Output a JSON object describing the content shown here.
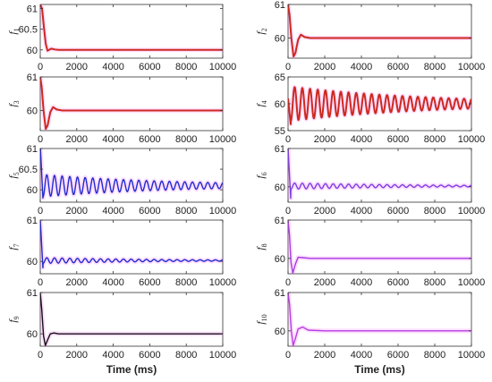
{
  "chart_data": [
    {
      "id": "f1",
      "type": "line",
      "ylabel": "f",
      "ylabel_sub": "1",
      "xlim": [
        0,
        10000
      ],
      "ylim": [
        59.8,
        61.1
      ],
      "yticks": [
        60,
        60.5,
        61
      ],
      "ytick_labels": [
        "60",
        "60.5",
        "61"
      ],
      "xticks": [
        0,
        2000,
        4000,
        6000,
        8000,
        10000
      ],
      "xtick_labels": [
        "0",
        "2000",
        "4000",
        "6000",
        "8000",
        "10000"
      ],
      "xlabel": "",
      "color": "#cc2a1f",
      "highlight": "#ff66ff",
      "series": [
        {
          "x": [
            0,
            100,
            200,
            300,
            400,
            600,
            800,
            1000,
            2000,
            4000,
            6000,
            8000,
            10000
          ],
          "y": [
            61.1,
            61.0,
            60.55,
            60.15,
            59.98,
            60.03,
            60.01,
            60.0,
            60.0,
            60.0,
            60.0,
            60.0,
            60.0
          ]
        }
      ]
    },
    {
      "id": "f2",
      "type": "line",
      "ylabel": "f",
      "ylabel_sub": "2",
      "xlim": [
        0,
        10000
      ],
      "ylim": [
        59.4,
        61.0
      ],
      "yticks": [
        60,
        61
      ],
      "ytick_labels": [
        "60",
        "61"
      ],
      "xticks": [
        0,
        2000,
        4000,
        6000,
        8000,
        10000
      ],
      "xtick_labels": [
        "0",
        "2000",
        "4000",
        "6000",
        "8000",
        "10000"
      ],
      "xlabel": "",
      "color": "#cc2a1f",
      "highlight": "#ff66ff",
      "series": [
        {
          "x": [
            0,
            80,
            180,
            300,
            400,
            550,
            700,
            900,
            1200,
            2000,
            4000,
            6000,
            8000,
            10000
          ],
          "y": [
            61.0,
            60.7,
            60.0,
            59.45,
            59.55,
            59.95,
            60.1,
            60.03,
            60.0,
            60.0,
            60.0,
            60.0,
            60.0,
            60.0
          ]
        }
      ]
    },
    {
      "id": "f3",
      "type": "line",
      "ylabel": "f",
      "ylabel_sub": "3",
      "xlim": [
        0,
        10000
      ],
      "ylim": [
        59.4,
        61.0
      ],
      "yticks": [
        60,
        61
      ],
      "ytick_labels": [
        "60",
        "61"
      ],
      "xticks": [
        0,
        2000,
        4000,
        6000,
        8000,
        10000
      ],
      "xtick_labels": [
        "0",
        "2000",
        "4000",
        "6000",
        "8000",
        "10000"
      ],
      "xlabel": "",
      "color": "#cc2a1f",
      "highlight": "#ff66ff",
      "series": [
        {
          "x": [
            0,
            80,
            180,
            300,
            400,
            550,
            700,
            900,
            1200,
            2000,
            4000,
            6000,
            8000,
            10000
          ],
          "y": [
            61.0,
            60.7,
            60.0,
            59.45,
            59.55,
            59.95,
            60.1,
            60.03,
            60.0,
            60.0,
            60.0,
            60.0,
            60.0,
            60.0
          ]
        }
      ]
    },
    {
      "id": "f4",
      "type": "line",
      "ylabel": "f",
      "ylabel_sub": "4",
      "xlim": [
        0,
        10000
      ],
      "ylim": [
        55,
        65
      ],
      "yticks": [
        55,
        60,
        65
      ],
      "ytick_labels": [
        "55",
        "60",
        "65"
      ],
      "xticks": [
        0,
        2000,
        4000,
        6000,
        8000,
        10000
      ],
      "xtick_labels": [
        "0",
        "2000",
        "4000",
        "6000",
        "8000",
        "10000"
      ],
      "xlabel": "",
      "color": "#cc2a1f",
      "highlight": "#ff66ff",
      "oscillation": {
        "baseline": 60,
        "start_amplitude": 3.2,
        "end_amplitude": 0.9,
        "period_ms": 420,
        "first_dip": 56.0
      }
    },
    {
      "id": "f5",
      "type": "line",
      "ylabel": "f",
      "ylabel_sub": "5",
      "xlim": [
        0,
        10000
      ],
      "ylim": [
        59.7,
        61.0
      ],
      "yticks": [
        60,
        60.5,
        61
      ],
      "ytick_labels": [
        "60",
        "60.5",
        "61"
      ],
      "xticks": [
        0,
        2000,
        4000,
        6000,
        8000,
        10000
      ],
      "xtick_labels": [
        "0",
        "2000",
        "4000",
        "6000",
        "8000",
        "10000"
      ],
      "xlabel": "",
      "color": "#1f2bcc",
      "highlight": "#ff66ff",
      "oscillation": {
        "baseline": 60.1,
        "start_amplitude": 0.27,
        "end_amplitude": 0.07,
        "period_ms": 420,
        "first_dip": 59.75
      }
    },
    {
      "id": "f6",
      "type": "line",
      "ylabel": "f",
      "ylabel_sub": "6",
      "xlim": [
        0,
        10000
      ],
      "ylim": [
        59.6,
        61.0
      ],
      "yticks": [
        60,
        61
      ],
      "ytick_labels": [
        "60",
        "61"
      ],
      "xticks": [
        0,
        2000,
        4000,
        6000,
        8000,
        10000
      ],
      "xtick_labels": [
        "0",
        "2000",
        "4000",
        "6000",
        "8000",
        "10000"
      ],
      "xlabel": "",
      "color": "#7a3fe0",
      "highlight": "#ff66ff",
      "oscillation": {
        "baseline": 60.02,
        "start_amplitude": 0.08,
        "end_amplitude": 0.02,
        "period_ms": 420,
        "first_dip": 59.65
      }
    },
    {
      "id": "f7",
      "type": "line",
      "ylabel": "f",
      "ylabel_sub": "7",
      "xlim": [
        0,
        10000
      ],
      "ylim": [
        59.7,
        61.0
      ],
      "yticks": [
        60,
        61
      ],
      "ytick_labels": [
        "60",
        "61"
      ],
      "xticks": [
        0,
        2000,
        4000,
        6000,
        8000,
        10000
      ],
      "xtick_labels": [
        "0",
        "2000",
        "4000",
        "6000",
        "8000",
        "10000"
      ],
      "xlabel": "",
      "color": "#1f2bcc",
      "highlight": "#ff66ff",
      "oscillation": {
        "baseline": 60.02,
        "start_amplitude": 0.07,
        "end_amplitude": 0.015,
        "period_ms": 420,
        "first_dip": 59.8
      }
    },
    {
      "id": "f8",
      "type": "line",
      "ylabel": "f",
      "ylabel_sub": "8",
      "xlim": [
        0,
        10000
      ],
      "ylim": [
        59.6,
        61.0
      ],
      "yticks": [
        60,
        61
      ],
      "ytick_labels": [
        "60",
        "61"
      ],
      "xticks": [
        0,
        2000,
        4000,
        6000,
        8000,
        10000
      ],
      "xtick_labels": [
        "0",
        "2000",
        "4000",
        "6000",
        "8000",
        "10000"
      ],
      "xlabel": "",
      "color": "#a33fe0",
      "highlight": "#ff66ff",
      "series": [
        {
          "x": [
            0,
            80,
            160,
            260,
            400,
            550,
            800,
            1200,
            2000,
            4000,
            6000,
            8000,
            10000
          ],
          "y": [
            61.0,
            60.6,
            59.9,
            59.62,
            59.85,
            60.03,
            60.02,
            60.0,
            60.0,
            60.0,
            60.0,
            60.0,
            60.0
          ]
        }
      ]
    },
    {
      "id": "f9",
      "type": "line",
      "ylabel": "f",
      "ylabel_sub": "9",
      "xlim": [
        0,
        10000
      ],
      "ylim": [
        59.7,
        61.0
      ],
      "yticks": [
        60,
        61
      ],
      "ytick_labels": [
        "60",
        "61"
      ],
      "xticks": [
        0,
        2000,
        4000,
        6000,
        8000,
        10000
      ],
      "xtick_labels": [
        "0",
        "2000",
        "4000",
        "6000",
        "8000",
        "10000"
      ],
      "xlabel": "Time (ms)",
      "color": "#111111",
      "highlight": "#ff66ff",
      "series": [
        {
          "x": [
            0,
            80,
            180,
            280,
            400,
            550,
            750,
            1000,
            2000,
            4000,
            6000,
            8000,
            10000
          ],
          "y": [
            61.0,
            60.6,
            59.95,
            59.72,
            59.85,
            60.0,
            60.02,
            60.0,
            60.0,
            60.0,
            60.0,
            60.0,
            60.0
          ]
        }
      ]
    },
    {
      "id": "f10",
      "type": "line",
      "ylabel": "f",
      "ylabel_sub": "10",
      "xlim": [
        0,
        10000
      ],
      "ylim": [
        59.6,
        61.0
      ],
      "yticks": [
        60,
        61
      ],
      "ytick_labels": [
        "60",
        "61"
      ],
      "xticks": [
        0,
        2000,
        4000,
        6000,
        8000,
        10000
      ],
      "xtick_labels": [
        "0",
        "2000",
        "4000",
        "6000",
        "8000",
        "10000"
      ],
      "xlabel": "Time (ms)",
      "color": "#b53fe0",
      "highlight": "#ff66ff",
      "series": [
        {
          "x": [
            0,
            80,
            180,
            280,
            400,
            550,
            800,
            1100,
            2000,
            4000,
            6000,
            8000,
            10000
          ],
          "y": [
            61.0,
            60.7,
            60.0,
            59.62,
            59.8,
            60.05,
            60.1,
            60.02,
            60.0,
            60.0,
            60.0,
            60.0,
            60.0
          ]
        }
      ]
    }
  ]
}
